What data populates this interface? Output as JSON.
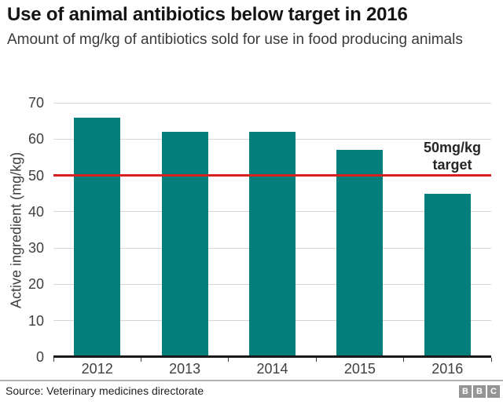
{
  "header": {
    "title": "Use of animal antibiotics below target in 2016",
    "subtitle": "Amount of mg/kg of antibiotics sold for use in food producing animals"
  },
  "chart_data": {
    "type": "bar",
    "title": "Use of animal antibiotics below target in 2016",
    "subtitle": "Amount of mg/kg of antibiotics sold for use in food producing animals",
    "categories": [
      "2012",
      "2013",
      "2014",
      "2015",
      "2016"
    ],
    "values": [
      66,
      62,
      62,
      57,
      45
    ],
    "xlabel": "",
    "ylabel": "Active ingredient (mg/kg)",
    "ylim": [
      0,
      70
    ],
    "ytick_step": 10,
    "grid": true,
    "bar_color": "#047e7b",
    "target_line": {
      "value": 50,
      "label_lines": [
        "50mg/kg",
        "target"
      ],
      "color": "#d6211f"
    }
  },
  "footer": {
    "source": "Source: Veterinary medicines directorate",
    "logo_letters": [
      "B",
      "B",
      "C"
    ]
  },
  "colors": {
    "bar": "#047e7b",
    "target_red": "#d6211f",
    "gridline": "#d5d5d5",
    "axis": "#1a1a1a",
    "text_dark": "#141414",
    "text_gray": "#404040",
    "divider": "#b3b3b3",
    "logo_gray": "#949494"
  }
}
